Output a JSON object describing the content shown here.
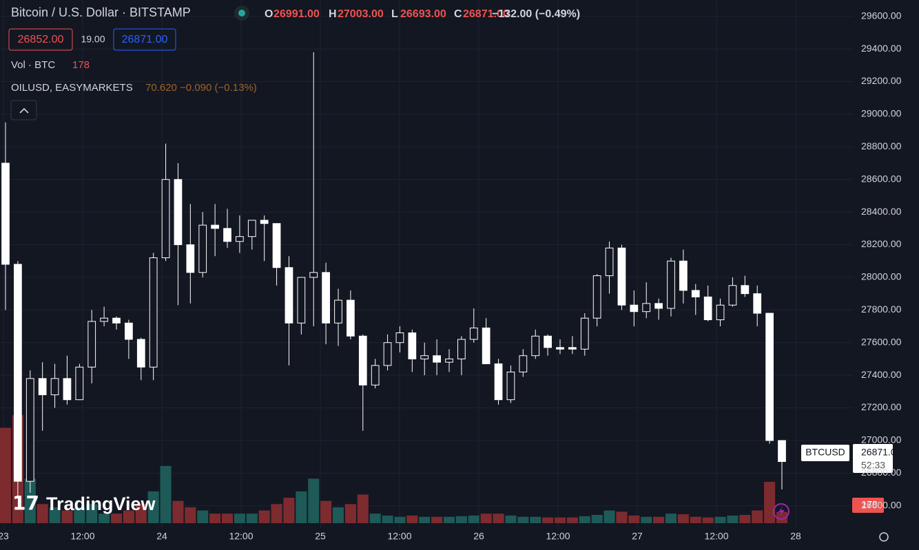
{
  "chart_data": {
    "type": "candlestick",
    "title": "Bitcoin / U.S. Dollar · BITSTAMP",
    "ohlc_header": [
      {
        "letter": "O",
        "value": "26991.00"
      },
      {
        "letter": "H",
        "value": "27003.00"
      },
      {
        "letter": "L",
        "value": "26693.00"
      },
      {
        "letter": "C",
        "value": "26871.00"
      }
    ],
    "change": "−132.00 (−0.49%)",
    "bid": "26852.00",
    "spread": "19.00",
    "ask": "26871.00",
    "volume_label": "Vol · BTC",
    "volume_last": "178",
    "overlay_name": "OILUSD, EASYMARKETS",
    "overlay_values": "70.620 −0.090 (−0.13%)",
    "logo": "TradingView",
    "price_tag_symbol": "BTCUSD",
    "price_tag_value": "26871.00",
    "price_tag_countdown": "52:33",
    "volume_tag": "178",
    "up_color": "#131722",
    "down_color": "#ffffff",
    "wick_color": "#ffffff",
    "volume_up_color": "#1d5a58",
    "volume_down_color": "#7d2b2f",
    "xlabels": [
      "23",
      "12:00",
      "24",
      "12:00",
      "25",
      "12:00",
      "26",
      "12:00",
      "27",
      "12:00",
      "28"
    ],
    "ylim": [
      26350,
      29700
    ],
    "yticks": [
      {
        "value": 29600,
        "label": "29600.00"
      },
      {
        "value": 29400,
        "label": "29400.00"
      },
      {
        "value": 29200,
        "label": "29200.00"
      },
      {
        "value": 29000,
        "label": "29000.00"
      },
      {
        "value": 28800,
        "label": "28800.00"
      },
      {
        "value": 28600,
        "label": "28600.00"
      },
      {
        "value": 28400,
        "label": "28400.00"
      },
      {
        "value": 28200,
        "label": "28200.00"
      },
      {
        "value": 28000,
        "label": "28000.00"
      },
      {
        "value": 27800,
        "label": "27800.00"
      },
      {
        "value": 27600,
        "label": "27600.00"
      },
      {
        "value": 27400,
        "label": "27400.00"
      },
      {
        "value": 27200,
        "label": "27200.00"
      },
      {
        "value": 27000,
        "label": "27000.00"
      },
      {
        "value": 26800,
        "label": "26800.00"
      },
      {
        "value": 26600,
        "label": "26600.00"
      }
    ],
    "open": [
      28700,
      28080,
      26750,
      27380,
      27280,
      27380,
      27250,
      27450,
      27730,
      27750,
      27720,
      27620,
      27450,
      28120,
      28600,
      28200,
      28030,
      28320,
      28300,
      28220,
      28250,
      28350,
      28330,
      28060,
      27720,
      28000,
      28030,
      27720,
      27860,
      27640,
      27340,
      27460,
      27600,
      27660,
      27500,
      27520,
      27480,
      27500,
      27620,
      27690,
      27470,
      27250,
      27420,
      27520,
      27640,
      27570,
      27570,
      27560,
      27750,
      28010,
      28180,
      27830,
      27790,
      27840,
      27810,
      28100,
      27920,
      27880,
      27740,
      27830,
      27950,
      27900,
      27780,
      27000
    ],
    "high": [
      28950,
      28100,
      27430,
      27480,
      27470,
      27520,
      27470,
      27800,
      27820,
      27760,
      27740,
      27630,
      28150,
      28820,
      28700,
      28450,
      28400,
      28450,
      28420,
      28380,
      28350,
      28380,
      28330,
      28130,
      28000,
      29380,
      28090,
      27930,
      27920,
      27650,
      27500,
      27650,
      27700,
      27680,
      27600,
      27620,
      27560,
      27640,
      27810,
      27750,
      27500,
      27460,
      27560,
      27680,
      27650,
      27620,
      27640,
      27780,
      28020,
      28220,
      28200,
      27920,
      27970,
      27870,
      28120,
      28170,
      27960,
      27950,
      27870,
      28000,
      28010,
      27950,
      27780,
      27000
    ],
    "low": [
      27800,
      26650,
      26680,
      27060,
      27200,
      27220,
      27250,
      27350,
      27700,
      27680,
      27500,
      27370,
      27370,
      28100,
      27830,
      27840,
      28000,
      28130,
      28180,
      28150,
      28170,
      28100,
      27950,
      27460,
      27650,
      27700,
      27590,
      27580,
      27620,
      27060,
      27320,
      27430,
      27540,
      27420,
      27400,
      27400,
      27420,
      27400,
      27600,
      27480,
      27220,
      27230,
      27390,
      27500,
      27520,
      27530,
      27530,
      27520,
      27700,
      27900,
      27800,
      27700,
      27750,
      27740,
      27760,
      27840,
      27770,
      27730,
      27700,
      27820,
      27880,
      27700,
      26980,
      26700
    ],
    "close": [
      28080,
      26750,
      27380,
      27280,
      27380,
      27250,
      27450,
      27730,
      27750,
      27720,
      27620,
      27450,
      28120,
      28600,
      28200,
      28030,
      28320,
      28300,
      28220,
      28250,
      28350,
      28330,
      28060,
      27720,
      28000,
      28030,
      27720,
      27860,
      27640,
      27340,
      27460,
      27600,
      27660,
      27500,
      27520,
      27480,
      27500,
      27620,
      27690,
      27470,
      27250,
      27420,
      27520,
      27640,
      27570,
      27560,
      27560,
      27750,
      28010,
      28180,
      27830,
      27790,
      27840,
      27810,
      28100,
      27920,
      27880,
      27740,
      27830,
      27950,
      27900,
      27780,
      27000,
      26871
    ],
    "volume": [
      1500,
      1700,
      700,
      300,
      250,
      200,
      250,
      300,
      150,
      150,
      200,
      300,
      500,
      900,
      350,
      250,
      200,
      150,
      150,
      150,
      150,
      200,
      300,
      400,
      500,
      700,
      350,
      250,
      300,
      450,
      150,
      120,
      100,
      120,
      100,
      100,
      100,
      110,
      120,
      150,
      150,
      120,
      100,
      100,
      90,
      90,
      90,
      110,
      130,
      200,
      180,
      120,
      100,
      100,
      150,
      140,
      100,
      90,
      100,
      120,
      130,
      200,
      650,
      178
    ]
  }
}
